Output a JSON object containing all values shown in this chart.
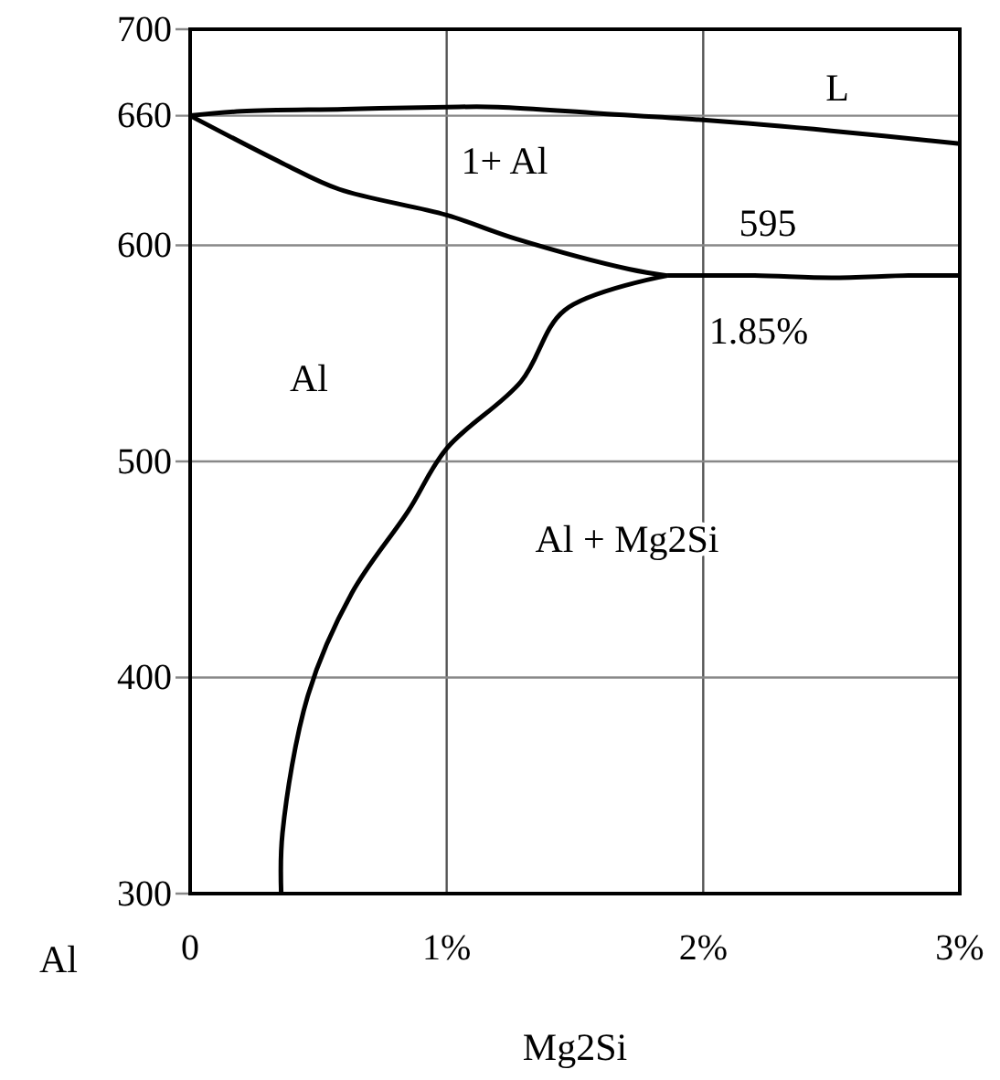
{
  "chart_data": {
    "type": "line",
    "xlabel": "Mg2Si",
    "xlim": [
      0,
      3
    ],
    "ylim": [
      300,
      700
    ],
    "xticks": [
      {
        "value": 0,
        "label": "0"
      },
      {
        "value": 1,
        "label": "1%"
      },
      {
        "value": 2,
        "label": "2%"
      },
      {
        "value": 3,
        "label": "3%"
      }
    ],
    "yticks": [
      300,
      400,
      500,
      600,
      660,
      700
    ],
    "grid": true,
    "marker": "none",
    "line_style": "solid",
    "series": [
      {
        "color": "#000000",
        "x": [
          0,
          0.2,
          0.6,
          1,
          1.2,
          1.6,
          2,
          2.5,
          3
        ],
        "values": [
          660,
          662,
          663,
          664,
          664,
          661,
          658,
          653,
          647
        ]
      },
      {
        "color": "#000000",
        "x": [
          0,
          0.36,
          0.58,
          1,
          1.27,
          1.71,
          1.86
        ],
        "values": [
          660,
          638,
          626,
          614,
          603,
          589,
          586
        ]
      },
      {
        "color": "#000000",
        "x": [
          1.86,
          2.2,
          2.5,
          2.8,
          3
        ],
        "values": [
          586,
          586,
          585,
          586,
          586
        ]
      },
      {
        "color": "#000000",
        "x": [
          1.86,
          1.46,
          1.29,
          1,
          0.85,
          0.63,
          0.46,
          0.36,
          0.355
        ],
        "values": [
          586,
          570,
          537,
          506,
          477,
          439,
          392,
          328,
          300
        ]
      }
    ],
    "annotations": [
      "L",
      "1+ Al",
      "595",
      "1.85%",
      "Al",
      "Al + Mg2Si",
      "Al"
    ]
  }
}
